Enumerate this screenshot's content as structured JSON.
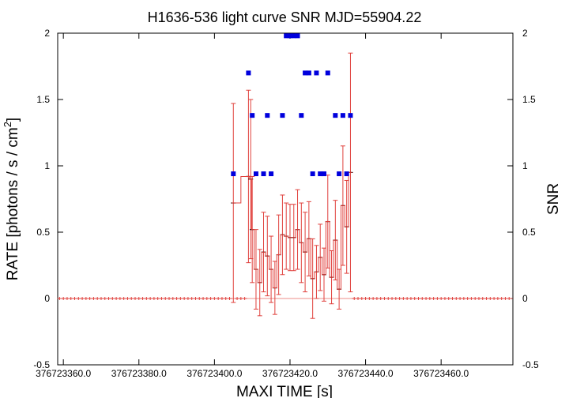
{
  "chart_data": {
    "type": "scatter",
    "title": "H1636-536 light curve  SNR MJD=55904.22",
    "xlabel": "MAXI TIME [s]",
    "ylabel": "RATE [photons / s / cm",
    "ylabel_sup": "2",
    "ylabel_end": "]",
    "y2label": "SNR",
    "xlim": [
      376723358.5,
      376723479
    ],
    "ylim": [
      -0.5,
      2
    ],
    "x_ticks": [
      376723360,
      376723380,
      376723400,
      376723420,
      376723440,
      376723460
    ],
    "x_tick_labels": [
      "376723360.0",
      "376723380.0",
      "376723400.0",
      "376723420.0",
      "376723440.0",
      "376723460.0"
    ],
    "y_ticks": [
      -0.5,
      0,
      0.5,
      1,
      1.5,
      2
    ],
    "y_tick_labels": [
      "-0.5",
      "0",
      "0.5",
      "1",
      "1.5",
      "2"
    ],
    "y2_ticks": [
      -0.5,
      0,
      0.5,
      1,
      1.5,
      2
    ],
    "y2_tick_labels": [
      "-0.5",
      "0",
      "0.5",
      "1",
      "1.5",
      "2"
    ],
    "grid": false,
    "colors": {
      "rate": "#e0403c",
      "snr": "#0000dd"
    },
    "series": [
      {
        "kind": "rate-with-errorbars",
        "points": [
          [
            376723405,
            0.72,
            0.75
          ],
          [
            376723409,
            0.92,
            0.65
          ],
          [
            376723409.6,
            0.9,
            0.6
          ],
          [
            376723410,
            0.52,
            0.4
          ],
          [
            376723411,
            0.22,
            0.3
          ],
          [
            376723412,
            0.12,
            0.25
          ],
          [
            376723413,
            0.35,
            0.3
          ],
          [
            376723414,
            0.32,
            0.3
          ],
          [
            376723415,
            0.22,
            0.25
          ],
          [
            376723416,
            0.08,
            0.2
          ],
          [
            376723417,
            0.33,
            0.3
          ],
          [
            376723418,
            0.48,
            0.3
          ],
          [
            376723419,
            0.47,
            0.25
          ],
          [
            376723420,
            0.46,
            0.25
          ],
          [
            376723421,
            0.46,
            0.25
          ],
          [
            376723422,
            0.52,
            0.3
          ],
          [
            376723423,
            0.42,
            0.3
          ],
          [
            376723424,
            0.35,
            0.3
          ],
          [
            376723425,
            0.45,
            0.28
          ],
          [
            376723426,
            0.15,
            0.3
          ],
          [
            376723427,
            0.2,
            0.2
          ],
          [
            376723428,
            0.31,
            0.25
          ],
          [
            376723429,
            0.18,
            0.2
          ],
          [
            376723430,
            0.58,
            0.35
          ],
          [
            376723431,
            0.16,
            0.2
          ],
          [
            376723432,
            0.44,
            0.3
          ],
          [
            376723433,
            0.07,
            0.15
          ],
          [
            376723434,
            0.7,
            0.45
          ],
          [
            376723435,
            0.54,
            0.35
          ],
          [
            376723436,
            0.95,
            0.9
          ]
        ],
        "zero_points_x": [
          376723359,
          376723360,
          376723361,
          376723362,
          376723363,
          376723364,
          376723365,
          376723366,
          376723367,
          376723368,
          376723369,
          376723370,
          376723371,
          376723372,
          376723373,
          376723374,
          376723375,
          376723376,
          376723377,
          376723378,
          376723379,
          376723380,
          376723381,
          376723382,
          376723383,
          376723384,
          376723385,
          376723386,
          376723387,
          376723388,
          376723389,
          376723390,
          376723391,
          376723392,
          376723393,
          376723394,
          376723395,
          376723396,
          376723397,
          376723398,
          376723399,
          376723400,
          376723401,
          376723402,
          376723403,
          376723404,
          376723406,
          376723407,
          376723408,
          376723437,
          376723438,
          376723439,
          376723440,
          376723441,
          376723442,
          376723443,
          376723444,
          376723445,
          376723446,
          376723447,
          376723448,
          376723449,
          376723450,
          376723451,
          376723452,
          376723453,
          376723454,
          376723455,
          376723456,
          376723457,
          376723458,
          376723459,
          376723460,
          376723461,
          376723462,
          376723463,
          376723464,
          376723465,
          376723466,
          376723467,
          376723468,
          376723469,
          376723470,
          376723471,
          376723472,
          376723473,
          376723474,
          376723475,
          376723476,
          376723477,
          376723478
        ]
      },
      {
        "kind": "snr",
        "points": [
          [
            376723405,
            0.94
          ],
          [
            376723409,
            1.7
          ],
          [
            376723410,
            1.38
          ],
          [
            376723411,
            0.94
          ],
          [
            376723413,
            0.94
          ],
          [
            376723414,
            1.38
          ],
          [
            376723415,
            0.94
          ],
          [
            376723418,
            1.38
          ],
          [
            376723419,
            1.98
          ],
          [
            376723420,
            1.98
          ],
          [
            376723421,
            1.98
          ],
          [
            376723422,
            1.98
          ],
          [
            376723423,
            1.38
          ],
          [
            376723424,
            1.7
          ],
          [
            376723425,
            1.7
          ],
          [
            376723426,
            0.94
          ],
          [
            376723427,
            1.7
          ],
          [
            376723428,
            0.94
          ],
          [
            376723429,
            0.94
          ],
          [
            376723430,
            1.7
          ],
          [
            376723432,
            1.38
          ],
          [
            376723433,
            0.94
          ],
          [
            376723434,
            1.38
          ],
          [
            376723435,
            0.94
          ],
          [
            376723436,
            1.38
          ]
        ]
      }
    ]
  }
}
